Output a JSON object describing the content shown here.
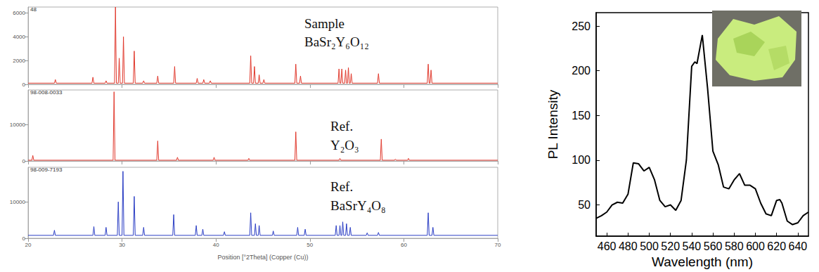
{
  "chart_data": [
    {
      "type": "line",
      "title": "48",
      "annotations": [
        "Sample",
        "BaSr₂Y₆O₁₂"
      ],
      "color": "#e0382c",
      "tick_labels": "y",
      "xlim": [
        20,
        70
      ],
      "xticks": [
        20,
        30,
        40,
        50,
        60,
        70
      ],
      "ylim": [
        0,
        6500
      ],
      "yticks": [
        0,
        2000,
        4000,
        6000
      ],
      "x": [
        20,
        22.8,
        22.9,
        23.0,
        26.8,
        26.9,
        27.0,
        28.2,
        28.3,
        28.4,
        29.2,
        29.3,
        29.4,
        29.6,
        29.7,
        29.8,
        30.05,
        30.15,
        30.25,
        31.2,
        31.3,
        31.4,
        32.2,
        32.3,
        32.4,
        33.7,
        33.8,
        33.9,
        35.5,
        35.6,
        35.7,
        37.9,
        38.0,
        38.1,
        38.6,
        38.7,
        38.8,
        39.3,
        39.4,
        39.5,
        43.6,
        43.7,
        43.8,
        44.0,
        44.1,
        44.2,
        44.5,
        44.6,
        44.7,
        45.0,
        45.1,
        45.2,
        48.4,
        48.5,
        48.6,
        48.9,
        49.0,
        49.1,
        53.0,
        53.1,
        53.2,
        53.3,
        53.4,
        53.5,
        53.7,
        53.8,
        53.9,
        54.0,
        54.1,
        54.2,
        54.3,
        54.4,
        54.5,
        57.2,
        57.3,
        57.4,
        62.5,
        62.6,
        62.7,
        62.8,
        62.9,
        63.0,
        70
      ],
      "values": [
        100,
        100,
        400,
        100,
        100,
        600,
        100,
        100,
        300,
        100,
        100,
        6500,
        100,
        100,
        2200,
        100,
        100,
        4000,
        100,
        100,
        2800,
        100,
        100,
        300,
        100,
        100,
        700,
        100,
        100,
        1500,
        100,
        100,
        500,
        100,
        100,
        400,
        100,
        100,
        300,
        100,
        100,
        2400,
        100,
        100,
        1500,
        100,
        100,
        800,
        100,
        100,
        400,
        100,
        100,
        1700,
        100,
        100,
        700,
        100,
        100,
        1300,
        100,
        100,
        1300,
        100,
        100,
        1200,
        100,
        100,
        1400,
        100,
        100,
        900,
        100,
        100,
        900,
        100,
        100,
        1700,
        100,
        100,
        1200,
        100,
        100
      ]
    },
    {
      "type": "line",
      "title": "98-008-0033",
      "annotations": [
        "Ref.",
        "Y₂O₃"
      ],
      "color": "#e0382c",
      "tick_labels": "y",
      "xlim": [
        20,
        70
      ],
      "xticks": [
        20,
        30,
        40,
        50,
        60,
        70
      ],
      "ylim": [
        0,
        19500
      ],
      "yticks": [
        0,
        10000
      ],
      "x": [
        20,
        20.4,
        20.5,
        20.6,
        29.05,
        29.15,
        29.25,
        33.7,
        33.8,
        33.9,
        35.8,
        35.9,
        36.0,
        39.7,
        39.8,
        39.9,
        43.4,
        43.5,
        43.6,
        48.4,
        48.5,
        48.6,
        53.1,
        53.2,
        53.3,
        57.5,
        57.6,
        57.7,
        59.0,
        59.1,
        59.2,
        60.4,
        60.5,
        60.6,
        70
      ],
      "values": [
        200,
        200,
        1500,
        200,
        200,
        19000,
        200,
        200,
        5500,
        200,
        200,
        1000,
        200,
        200,
        1000,
        200,
        200,
        700,
        200,
        200,
        8000,
        200,
        200,
        700,
        200,
        200,
        6000,
        200,
        200,
        500,
        200,
        200,
        700,
        200,
        200
      ]
    },
    {
      "type": "line",
      "title": "98-009-7193",
      "annotations": [
        "Ref.",
        "BaSrY₄O₈"
      ],
      "color": "#2b3ec4",
      "xlabel": "Position [°2Theta] (Copper (Cu))",
      "xlim": [
        20,
        70
      ],
      "xticks": [
        20,
        30,
        40,
        50,
        60,
        70
      ],
      "ylim": [
        0,
        19500
      ],
      "yticks": [
        0,
        10000
      ],
      "x": [
        20,
        22.7,
        22.8,
        22.9,
        26.9,
        27.0,
        27.1,
        28.2,
        28.3,
        28.4,
        29.5,
        29.6,
        29.7,
        30.0,
        30.1,
        30.2,
        31.2,
        31.3,
        31.4,
        32.2,
        32.3,
        32.4,
        35.4,
        35.5,
        35.6,
        37.8,
        37.9,
        38.0,
        38.5,
        38.6,
        38.7,
        40.8,
        40.9,
        41.0,
        43.6,
        43.7,
        43.8,
        44.1,
        44.2,
        44.3,
        44.5,
        44.6,
        44.7,
        46.0,
        46.1,
        46.2,
        48.6,
        48.7,
        48.8,
        49.4,
        49.5,
        49.6,
        52.7,
        52.8,
        52.9,
        53.1,
        53.2,
        53.3,
        53.4,
        53.5,
        53.6,
        53.8,
        53.9,
        54.0,
        54.2,
        54.3,
        54.4,
        56.0,
        56.1,
        56.2,
        57.2,
        57.3,
        57.4,
        62.5,
        62.6,
        62.7,
        63.0,
        63.1,
        63.2,
        70
      ],
      "values": [
        800,
        800,
        2200,
        800,
        800,
        3200,
        800,
        800,
        3000,
        800,
        800,
        10000,
        800,
        800,
        18400,
        800,
        800,
        11500,
        800,
        800,
        3000,
        800,
        800,
        6500,
        800,
        800,
        3500,
        800,
        800,
        2500,
        800,
        800,
        1800,
        800,
        800,
        7000,
        800,
        800,
        4000,
        800,
        800,
        3500,
        800,
        800,
        2000,
        800,
        800,
        3000,
        800,
        800,
        2500,
        800,
        800,
        3500,
        800,
        800,
        3500,
        800,
        800,
        4500,
        800,
        800,
        4000,
        800,
        800,
        3000,
        800,
        800,
        1500,
        800,
        800,
        1600,
        800,
        800,
        7000,
        800,
        800,
        3000,
        800,
        800
      ]
    },
    {
      "type": "line",
      "color": "#000000",
      "xlabel": "Wavelength (nm)",
      "ylabel": "PL Intensity",
      "xlim": [
        450,
        650
      ],
      "xticks": [
        460,
        480,
        500,
        520,
        540,
        560,
        580,
        600,
        620,
        640
      ],
      "ylim": [
        15,
        265
      ],
      "yticks": [
        50,
        100,
        150,
        200,
        250
      ],
      "x": [
        450,
        455,
        460,
        465,
        470,
        475,
        480,
        485,
        490,
        495,
        500,
        505,
        510,
        515,
        520,
        525,
        530,
        535,
        540,
        543,
        545,
        550,
        555,
        560,
        565,
        570,
        575,
        580,
        585,
        590,
        595,
        600,
        605,
        610,
        615,
        620,
        623,
        625,
        630,
        635,
        640,
        645,
        650
      ],
      "values": [
        35,
        38,
        42,
        50,
        53,
        52,
        62,
        97,
        96,
        88,
        92,
        78,
        55,
        48,
        50,
        44,
        55,
        100,
        205,
        210,
        208,
        240,
        180,
        110,
        95,
        70,
        68,
        78,
        85,
        72,
        72,
        68,
        52,
        40,
        38,
        55,
        56,
        52,
        32,
        28,
        30,
        38,
        42
      ]
    }
  ]
}
